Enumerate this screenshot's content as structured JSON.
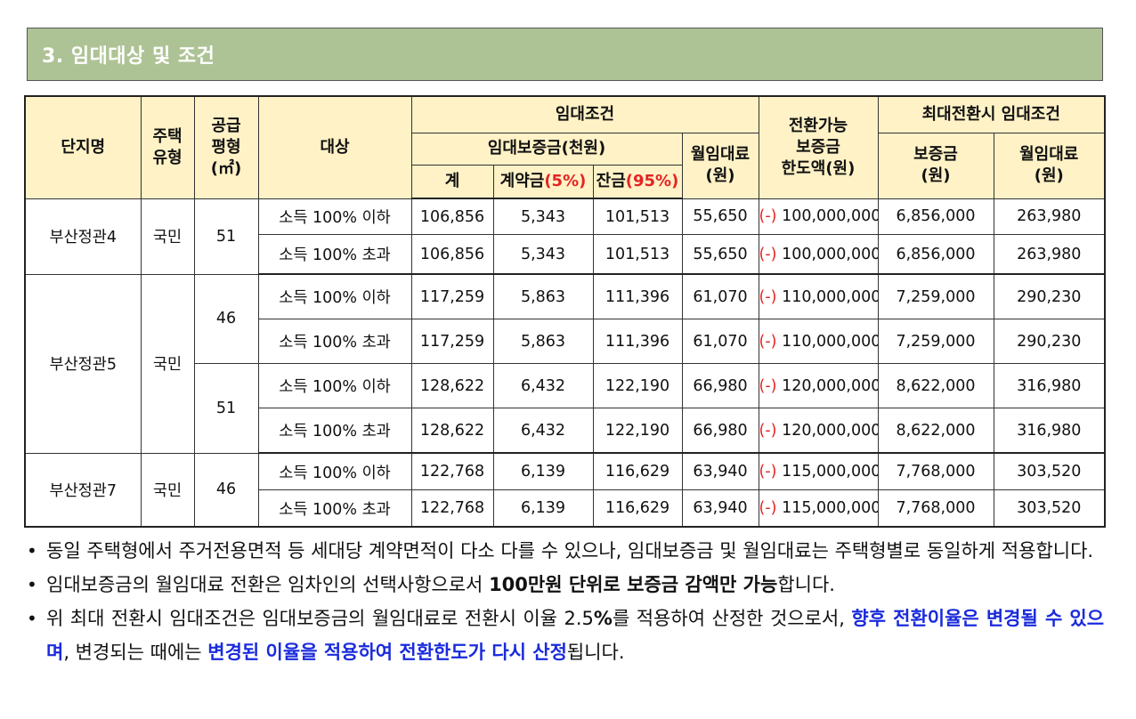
{
  "section": {
    "title": "3. 임대대상 및 조건"
  },
  "header": {
    "complex": "단지명",
    "housing_type_1": "주택",
    "housing_type_2": "유형",
    "supply_1": "공급",
    "supply_2": "평형",
    "supply_3": "(㎡)",
    "target": "대상",
    "lease_terms": "임대조건",
    "deposit": "임대보증금(천원)",
    "total": "계",
    "contract_prefix": "계약금",
    "contract_pct": "(5%)",
    "balance_prefix": "잔금",
    "balance_pct": "(95%)",
    "monthly_1": "월임대료",
    "monthly_2": "(원)",
    "convertible_1": "전환가능",
    "convertible_2": "보증금",
    "convertible_3": "한도액(원)",
    "max_conv": "최대전환시 임대조건",
    "max_deposit_1": "보증금",
    "max_deposit_2": "(원)",
    "max_monthly_1": "월임대료",
    "max_monthly_2": "(원)"
  },
  "rows": [
    {
      "complex": "부산정관4",
      "type": "국민",
      "area": "51",
      "target": "소득 100% 이하",
      "total": "106,856",
      "contract": "5,343",
      "balance": "101,513",
      "monthly": "55,650",
      "minus": "(-)",
      "limit": "100,000,000",
      "max_deposit": "6,856,000",
      "max_monthly": "263,980"
    },
    {
      "target": "소득 100% 초과",
      "total": "106,856",
      "contract": "5,343",
      "balance": "101,513",
      "monthly": "55,650",
      "minus": "(-)",
      "limit": "100,000,000",
      "max_deposit": "6,856,000",
      "max_monthly": "263,980"
    },
    {
      "complex": "부산정관5",
      "type": "국민",
      "area": "46",
      "target": "소득 100% 이하",
      "total": "117,259",
      "contract": "5,863",
      "balance": "111,396",
      "monthly": "61,070",
      "minus": "(-)",
      "limit": "110,000,000",
      "max_deposit": "7,259,000",
      "max_monthly": "290,230"
    },
    {
      "target": "소득 100% 초과",
      "total": "117,259",
      "contract": "5,863",
      "balance": "111,396",
      "monthly": "61,070",
      "minus": "(-)",
      "limit": "110,000,000",
      "max_deposit": "7,259,000",
      "max_monthly": "290,230"
    },
    {
      "area": "51",
      "target": "소득 100% 이하",
      "total": "128,622",
      "contract": "6,432",
      "balance": "122,190",
      "monthly": "66,980",
      "minus": "(-)",
      "limit": "120,000,000",
      "max_deposit": "8,622,000",
      "max_monthly": "316,980"
    },
    {
      "target": "소득 100% 초과",
      "total": "128,622",
      "contract": "6,432",
      "balance": "122,190",
      "monthly": "66,980",
      "minus": "(-)",
      "limit": "120,000,000",
      "max_deposit": "8,622,000",
      "max_monthly": "316,980"
    },
    {
      "complex": "부산정관7",
      "type": "국민",
      "area": "46",
      "target": "소득 100% 이하",
      "total": "122,768",
      "contract": "6,139",
      "balance": "116,629",
      "monthly": "63,940",
      "minus": "(-)",
      "limit": "115,000,000",
      "max_deposit": "7,768,000",
      "max_monthly": "303,520"
    },
    {
      "target": "소득 100% 초과",
      "total": "122,768",
      "contract": "6,139",
      "balance": "116,629",
      "monthly": "63,940",
      "minus": "(-)",
      "limit": "115,000,000",
      "max_deposit": "7,768,000",
      "max_monthly": "303,520"
    }
  ],
  "notes": {
    "bullet": "•",
    "n1": "동일 주택형에서 주거전용면적 등 세대당 계약면적이 다소 다를 수 있으나, 임대보증금 및 월임대료는 주택형별로 동일하게 적용합니다.",
    "n2_a": "임대보증금의 월임대료 전환은 임차인의 선택사항으로서 ",
    "n2_b": "100만원 단위로 보증금 감액만 가능",
    "n2_c": "합니다.",
    "n3_a": "위 최대 전환시 임대조건은 임대보증금의 월임대료로 전환시 이율 2.5",
    "n3_pct": "%",
    "n3_b": "를 적용하여 산정한 것으로서, ",
    "n3_c": "향후 전환이율은 변경될 수 있으며",
    "n3_d": ", 변경되는 때에는 ",
    "n3_e": "변경된 이율을 적용하여 전환한도가 다시 산정",
    "n3_f": "됩니다."
  }
}
